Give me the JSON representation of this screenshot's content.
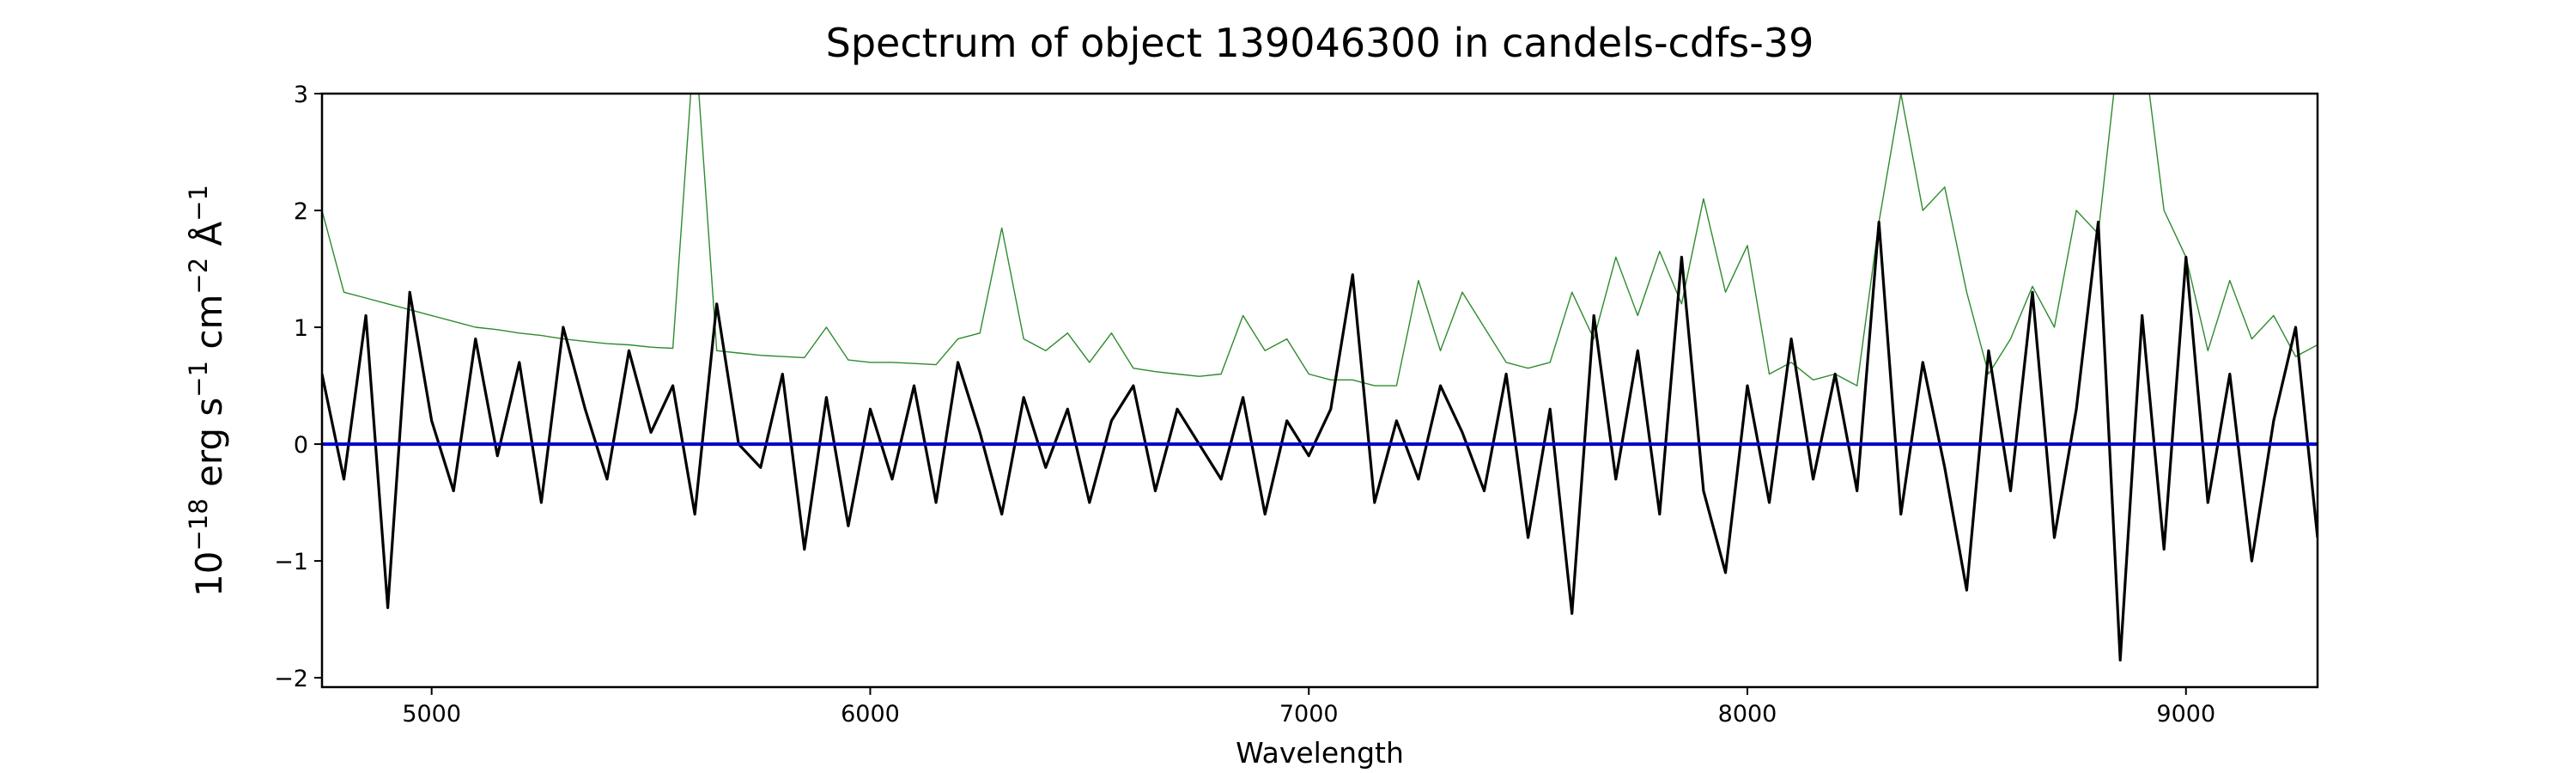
{
  "chart_data": {
    "type": "line",
    "title": "Spectrum of object 139046300 in candels-cdfs-39",
    "x_label": "Wavelength",
    "y_label": [
      "10",
      "−18",
      " erg s",
      "−1",
      " cm",
      "−2",
      " Å",
      "−1"
    ],
    "xlim": [
      4750,
      9300
    ],
    "ylim": [
      -2.08,
      3
    ],
    "xticks": [
      5000,
      6000,
      7000,
      8000,
      9000
    ],
    "yticks": [
      {
        "value": -2,
        "label": "−2"
      },
      {
        "value": -1,
        "label": "−1"
      },
      0,
      1,
      2,
      3
    ],
    "grid": false,
    "series": [
      {
        "color": "#2e8b2e",
        "x": [
          4750,
          4800,
          4850,
          4900,
          4950,
          5000,
          5050,
          5100,
          5150,
          5200,
          5250,
          5300,
          5350,
          5400,
          5450,
          5500,
          5550,
          5600,
          5650,
          5700,
          5750,
          5800,
          5850,
          5900,
          5950,
          6000,
          6050,
          6100,
          6150,
          6200,
          6250,
          6300,
          6350,
          6400,
          6450,
          6500,
          6550,
          6600,
          6650,
          6700,
          6750,
          6800,
          6850,
          6900,
          6950,
          7000,
          7050,
          7100,
          7150,
          7200,
          7250,
          7300,
          7350,
          7400,
          7450,
          7500,
          7550,
          7600,
          7650,
          7700,
          7750,
          7800,
          7850,
          7900,
          7950,
          8000,
          8050,
          8100,
          8150,
          8200,
          8250,
          8300,
          8350,
          8400,
          8450,
          8500,
          8550,
          8600,
          8650,
          8700,
          8750,
          8800,
          8850,
          8900,
          8950,
          9000,
          9050,
          9100,
          9150,
          9200,
          9250,
          9300
        ],
        "values": [
          2.0,
          1.3,
          1.25,
          1.2,
          1.15,
          1.1,
          1.05,
          1.0,
          0.98,
          0.95,
          0.93,
          0.9,
          0.88,
          0.86,
          0.85,
          0.83,
          0.82,
          3.5,
          0.8,
          0.78,
          0.76,
          0.75,
          0.74,
          1.0,
          0.72,
          0.7,
          0.7,
          0.69,
          0.68,
          0.9,
          0.95,
          1.85,
          0.9,
          0.8,
          0.95,
          0.7,
          0.95,
          0.65,
          0.62,
          0.6,
          0.58,
          0.6,
          1.1,
          0.8,
          0.9,
          0.6,
          0.55,
          0.55,
          0.5,
          0.5,
          1.4,
          0.8,
          1.3,
          1.0,
          0.7,
          0.65,
          0.7,
          1.3,
          0.9,
          1.6,
          1.1,
          1.65,
          1.2,
          2.1,
          1.3,
          1.7,
          0.6,
          0.7,
          0.55,
          0.6,
          0.5,
          1.9,
          3.0,
          2.0,
          2.2,
          1.3,
          0.6,
          0.9,
          1.35,
          1.0,
          2.0,
          1.8,
          3.5,
          3.5,
          2.0,
          1.6,
          0.8,
          1.4,
          0.9,
          1.1,
          0.75,
          0.85
        ]
      },
      {
        "color": "#000000",
        "x": [
          4750,
          4800,
          4850,
          4900,
          4950,
          5000,
          5050,
          5100,
          5150,
          5200,
          5250,
          5300,
          5350,
          5400,
          5450,
          5500,
          5550,
          5600,
          5650,
          5700,
          5750,
          5800,
          5850,
          5900,
          5950,
          6000,
          6050,
          6100,
          6150,
          6200,
          6250,
          6300,
          6350,
          6400,
          6450,
          6500,
          6550,
          6600,
          6650,
          6700,
          6750,
          6800,
          6850,
          6900,
          6950,
          7000,
          7050,
          7100,
          7150,
          7200,
          7250,
          7300,
          7350,
          7400,
          7450,
          7500,
          7550,
          7600,
          7650,
          7700,
          7750,
          7800,
          7850,
          7900,
          7950,
          8000,
          8050,
          8100,
          8150,
          8200,
          8250,
          8300,
          8350,
          8400,
          8450,
          8500,
          8550,
          8600,
          8650,
          8700,
          8750,
          8800,
          8850,
          8900,
          8950,
          9000,
          9050,
          9100,
          9150,
          9200,
          9250,
          9300
        ],
        "values": [
          0.6,
          -0.3,
          1.1,
          -1.4,
          1.3,
          0.2,
          -0.4,
          0.9,
          -0.1,
          0.7,
          -0.5,
          1.0,
          0.3,
          -0.3,
          0.8,
          0.1,
          0.5,
          -0.6,
          1.2,
          0.0,
          -0.2,
          0.6,
          -0.9,
          0.4,
          -0.7,
          0.3,
          -0.3,
          0.5,
          -0.5,
          0.7,
          0.1,
          -0.6,
          0.4,
          -0.2,
          0.3,
          -0.5,
          0.2,
          0.5,
          -0.4,
          0.3,
          0.0,
          -0.3,
          0.4,
          -0.6,
          0.2,
          -0.1,
          0.3,
          1.45,
          -0.5,
          0.2,
          -0.3,
          0.5,
          0.1,
          -0.4,
          0.6,
          -0.8,
          0.3,
          -1.45,
          1.1,
          -0.3,
          0.8,
          -0.6,
          1.6,
          -0.4,
          -1.1,
          0.5,
          -0.5,
          0.9,
          -0.3,
          0.6,
          -0.4,
          1.9,
          -0.6,
          0.7,
          -0.2,
          -1.25,
          0.8,
          -0.4,
          1.3,
          -0.8,
          0.3,
          1.9,
          -1.85,
          1.1,
          -0.9,
          1.6,
          -0.5,
          0.6,
          -1.0,
          0.2,
          1.0,
          -0.8
        ]
      },
      {
        "color": "#0000cc",
        "x": [
          4750,
          9300
        ],
        "values": [
          0,
          0
        ]
      }
    ]
  }
}
